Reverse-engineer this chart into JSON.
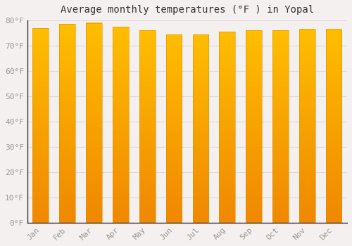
{
  "title": "Average monthly temperatures (°F ) in Yopal",
  "months": [
    "Jan",
    "Feb",
    "Mar",
    "Apr",
    "May",
    "Jun",
    "Jul",
    "Aug",
    "Sep",
    "Oct",
    "Nov",
    "Dec"
  ],
  "values": [
    77,
    78.5,
    79,
    77.5,
    76,
    74.5,
    74.5,
    75.5,
    76,
    76,
    76.5,
    76.5
  ],
  "bar_color_top": "#FFBE00",
  "bar_color_bottom": "#F08800",
  "bar_edge_color": "#E09000",
  "ylim": [
    0,
    80
  ],
  "yticks": [
    0,
    10,
    20,
    30,
    40,
    50,
    60,
    70,
    80
  ],
  "ytick_labels": [
    "0°F",
    "10°F",
    "20°F",
    "30°F",
    "40°F",
    "50°F",
    "60°F",
    "70°F",
    "80°F"
  ],
  "background_color": "#f5f0f0",
  "plot_bg_color": "#f5f0f0",
  "grid_color": "#e0d8d8",
  "title_fontsize": 10,
  "tick_fontsize": 8,
  "bar_width": 0.6,
  "tick_color": "#999999",
  "spine_color": "#333333"
}
